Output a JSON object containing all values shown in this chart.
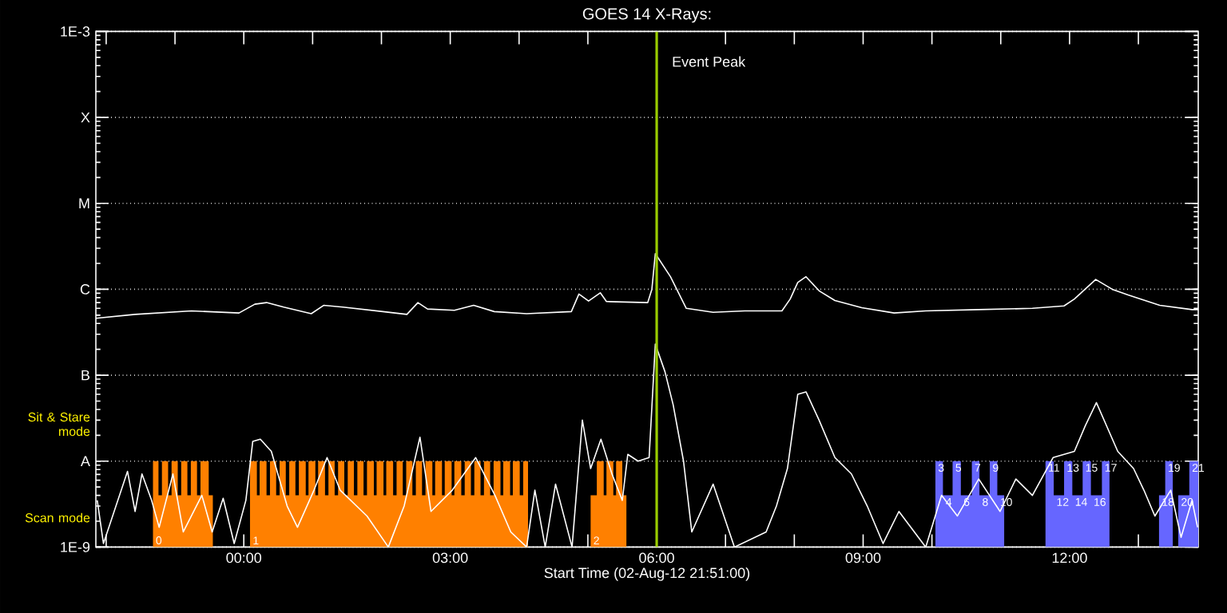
{
  "chart_data": {
    "type": "line",
    "title": "GOES 14 X-Rays:",
    "xlabel": "Start Time (02-Aug-12 21:51:00)",
    "log": true,
    "grid": "y",
    "xlim": [
      -2.15,
      13.87
    ],
    "ylim": [
      1e-09,
      0.001
    ],
    "xticks": [
      {
        "value": -2,
        "label": null
      },
      {
        "value": -1,
        "label": null
      },
      {
        "value": 0,
        "label": "00:00"
      },
      {
        "value": 1,
        "label": null
      },
      {
        "value": 2,
        "label": null
      },
      {
        "value": 3,
        "label": "03:00"
      },
      {
        "value": 4,
        "label": null
      },
      {
        "value": 5,
        "label": null
      },
      {
        "value": 6,
        "label": "06:00"
      },
      {
        "value": 7,
        "label": null
      },
      {
        "value": 8,
        "label": null
      },
      {
        "value": 9,
        "label": "09:00"
      },
      {
        "value": 10,
        "label": null
      },
      {
        "value": 11,
        "label": null
      },
      {
        "value": 12,
        "label": "12:00"
      },
      {
        "value": 13,
        "label": null
      }
    ],
    "yticks": [
      {
        "value": 1e-09,
        "label": "1E-9"
      },
      {
        "value": 2.2e-09,
        "label": "Scan mode"
      },
      {
        "value": 1e-08,
        "label": "A"
      },
      {
        "value": 2.7e-08,
        "label": "Sit & Stare mode"
      },
      {
        "value": 1e-07,
        "label": "B"
      },
      {
        "value": 1e-06,
        "label": "C"
      },
      {
        "value": 1e-05,
        "label": "M"
      },
      {
        "value": 0.0001,
        "label": "X"
      },
      {
        "value": 0.001,
        "label": "1E-3"
      }
    ],
    "series": [
      {
        "type": "area",
        "color": "#ff8000",
        "x": [
          -1.32,
          -1.32,
          -1.24,
          -1.24,
          -1.19,
          -1.19,
          -1.1,
          -1.1,
          -1.05,
          -1.05,
          -0.96,
          -0.96,
          -0.91,
          -0.91,
          -0.82,
          -0.82,
          -0.77,
          -0.77,
          -0.68,
          -0.68,
          -0.63,
          -0.63,
          -0.51,
          -0.51,
          -0.45,
          -0.45
        ],
        "values": [
          1e-09,
          1e-08,
          1e-08,
          4e-09,
          4e-09,
          1e-08,
          1e-08,
          4e-09,
          4e-09,
          1e-08,
          1e-08,
          4e-09,
          4e-09,
          1e-08,
          1e-08,
          4e-09,
          4e-09,
          1e-08,
          1e-08,
          4e-09,
          4e-09,
          1e-08,
          1e-08,
          4e-09,
          4e-09,
          1e-09
        ]
      },
      {
        "type": "area",
        "color": "#ff8000",
        "x": [
          0.09,
          0.09,
          0.19,
          0.19,
          0.23,
          0.23,
          0.33,
          0.33,
          0.38,
          0.38,
          0.47,
          0.47,
          0.52,
          0.52,
          0.61,
          0.61,
          0.66,
          0.66,
          0.75,
          0.75,
          0.8,
          0.8,
          0.9,
          0.9,
          0.94,
          0.94,
          1.04,
          1.04,
          1.08,
          1.08,
          1.18,
          1.18,
          1.23,
          1.23,
          1.32,
          1.32,
          1.37,
          1.37,
          1.46,
          1.46,
          1.51,
          1.51,
          1.6,
          1.6,
          1.65,
          1.65,
          1.74,
          1.74,
          1.79,
          1.79,
          1.89,
          1.89,
          1.93,
          1.93,
          2.03,
          2.03,
          2.07,
          2.07,
          2.17,
          2.17,
          2.22,
          2.22,
          2.31,
          2.31,
          2.36,
          2.36,
          2.45,
          2.45,
          2.5,
          2.5,
          2.59,
          2.59,
          2.64,
          2.64,
          2.74,
          2.74,
          2.78,
          2.78,
          2.88,
          2.88,
          2.92,
          2.92,
          3.02,
          3.02,
          3.06,
          3.06,
          3.16,
          3.16,
          3.21,
          3.21,
          3.3,
          3.3,
          3.35,
          3.35,
          3.44,
          3.44,
          3.49,
          3.49,
          3.58,
          3.58,
          3.63,
          3.63,
          3.73,
          3.73,
          3.77,
          3.77,
          3.87,
          3.87,
          3.91,
          3.91,
          4.01,
          4.01,
          4.06,
          4.06,
          4.13,
          4.13
        ],
        "values": [
          1e-09,
          1e-08,
          1e-08,
          4e-09,
          4e-09,
          1e-08,
          1e-08,
          4e-09,
          4e-09,
          1e-08,
          1e-08,
          4e-09,
          4e-09,
          1e-08,
          1e-08,
          4e-09,
          4e-09,
          1e-08,
          1e-08,
          4e-09,
          4e-09,
          1e-08,
          1e-08,
          4e-09,
          4e-09,
          1e-08,
          1e-08,
          4e-09,
          4e-09,
          1e-08,
          1e-08,
          4e-09,
          4e-09,
          1e-08,
          1e-08,
          4e-09,
          4e-09,
          1e-08,
          1e-08,
          4e-09,
          4e-09,
          1e-08,
          1e-08,
          4e-09,
          4e-09,
          1e-08,
          1e-08,
          4e-09,
          4e-09,
          1e-08,
          1e-08,
          4e-09,
          4e-09,
          1e-08,
          1e-08,
          4e-09,
          4e-09,
          1e-08,
          1e-08,
          4e-09,
          4e-09,
          1e-08,
          1e-08,
          4e-09,
          4e-09,
          1e-08,
          1e-08,
          4e-09,
          4e-09,
          1e-08,
          1e-08,
          4e-09,
          4e-09,
          1e-08,
          1e-08,
          4e-09,
          4e-09,
          1e-08,
          1e-08,
          4e-09,
          4e-09,
          1e-08,
          1e-08,
          4e-09,
          4e-09,
          1e-08,
          1e-08,
          4e-09,
          4e-09,
          1e-08,
          1e-08,
          4e-09,
          4e-09,
          1e-08,
          1e-08,
          4e-09,
          4e-09,
          1e-08,
          1e-08,
          4e-09,
          4e-09,
          1e-08,
          1e-08,
          4e-09,
          4e-09,
          1e-08,
          1e-08,
          4e-09,
          4e-09,
          1e-08,
          1e-08,
          4e-09,
          4e-09,
          1e-08,
          1e-08,
          1e-09
        ]
      },
      {
        "type": "area",
        "color": "#ff8000",
        "x": [
          5.04,
          5.04,
          5.13,
          5.13,
          5.23,
          5.23,
          5.27,
          5.27,
          5.37,
          5.37,
          5.41,
          5.41,
          5.5,
          5.5,
          5.56,
          5.56
        ],
        "values": [
          1e-09,
          4e-09,
          4e-09,
          1e-08,
          1e-08,
          4e-09,
          4e-09,
          1e-08,
          1e-08,
          4e-09,
          4e-09,
          1e-08,
          1e-08,
          4e-09,
          4e-09,
          1e-09
        ]
      },
      {
        "type": "area",
        "color": "#6666ff",
        "x": [
          10.05,
          10.05,
          10.16,
          10.16,
          10.3,
          10.3,
          10.42,
          10.42,
          10.58,
          10.58,
          10.69,
          10.69,
          10.84,
          10.84,
          10.95,
          10.95,
          11.05,
          11.05
        ],
        "values": [
          1e-09,
          1e-08,
          1e-08,
          4e-09,
          4e-09,
          1e-08,
          1e-08,
          4e-09,
          4e-09,
          1e-08,
          1e-08,
          4e-09,
          4e-09,
          1e-08,
          1e-08,
          4e-09,
          4e-09,
          1e-09
        ]
      },
      {
        "type": "area",
        "color": "#6666ff",
        "x": [
          11.65,
          11.65,
          11.77,
          11.77,
          11.92,
          11.92,
          12.04,
          12.04,
          12.19,
          12.19,
          12.31,
          12.31,
          12.47,
          12.47,
          12.58,
          12.58
        ],
        "values": [
          1e-09,
          1e-08,
          1e-08,
          4e-09,
          4e-09,
          1e-08,
          1e-08,
          4e-09,
          4e-09,
          1e-08,
          1e-08,
          4e-09,
          4e-09,
          1e-08,
          1e-08,
          1e-09
        ]
      },
      {
        "type": "area",
        "color": "#6666ff",
        "x": [
          13.3,
          13.3,
          13.39,
          13.39,
          13.5,
          13.5
        ],
        "values": [
          1e-09,
          4e-09,
          4e-09,
          1e-08,
          1e-08,
          1e-09
        ]
      },
      {
        "type": "area",
        "color": "#6666ff",
        "x": [
          13.58,
          13.58,
          13.74,
          13.74,
          13.87,
          13.87
        ],
        "values": [
          1e-09,
          4e-09,
          4e-09,
          1e-08,
          1e-08,
          1e-09
        ]
      },
      {
        "color": "#ffffff",
        "x": [
          -2.15,
          -1.58,
          -0.76,
          -0.07,
          0.16,
          0.33,
          0.58,
          0.98,
          1.16,
          1.44,
          2.02,
          2.37,
          2.53,
          2.67,
          3.06,
          3.34,
          3.64,
          4.11,
          4.76,
          4.87,
          5.01,
          5.18,
          5.27,
          5.87,
          5.93,
          5.98,
          6.2,
          6.43,
          6.82,
          7.28,
          7.82,
          7.94,
          8.05,
          8.17,
          8.36,
          8.59,
          8.98,
          9.45,
          9.91,
          10.68,
          11.46,
          11.92,
          12.07,
          12.38,
          12.62,
          12.85,
          13.31,
          13.78,
          13.87
        ],
        "values": [
          4.6e-07,
          5.1e-07,
          5.6e-07,
          5.3e-07,
          6.7e-07,
          7e-07,
          6.2e-07,
          5.2e-07,
          6.5e-07,
          6.2e-07,
          5.5e-07,
          5.1e-07,
          7e-07,
          5.9e-07,
          5.7e-07,
          6.5e-07,
          5.5e-07,
          5.2e-07,
          5.5e-07,
          8.8e-07,
          7.3e-07,
          9.1e-07,
          7.2e-07,
          7e-07,
          1e-06,
          2.6e-06,
          1.4e-06,
          6e-07,
          5.4e-07,
          5.6e-07,
          5.6e-07,
          7.7e-07,
          1.2e-06,
          1.4e-06,
          9.6e-07,
          7.4e-07,
          6.1e-07,
          5.3e-07,
          5.6e-07,
          5.8e-07,
          6e-07,
          6.4e-07,
          7.7e-07,
          1.3e-06,
          1e-06,
          8.6e-07,
          6.5e-07,
          5.8e-07,
          5.8e-07
        ]
      },
      {
        "color": "#ffffff",
        "x": [
          -2.13,
          -2.04,
          -1.69,
          -1.58,
          -1.48,
          -1.34,
          -1.23,
          -1.03,
          -0.88,
          -0.61,
          -0.46,
          -0.3,
          -0.14,
          0.03,
          0.13,
          0.24,
          0.4,
          0.63,
          0.78,
          1.02,
          1.21,
          1.4,
          1.79,
          2.1,
          2.33,
          2.56,
          2.72,
          3.03,
          3.37,
          3.65,
          3.88,
          4.11,
          4.23,
          4.38,
          4.53,
          4.77,
          4.92,
          5.04,
          5.19,
          5.35,
          5.5,
          5.58,
          5.73,
          5.89,
          5.98,
          6.12,
          6.24,
          6.39,
          6.51,
          6.82,
          7.13,
          7.59,
          7.74,
          7.9,
          8.05,
          8.17,
          8.36,
          8.59,
          8.83,
          9.06,
          9.29,
          9.52,
          9.91,
          10.14,
          10.37,
          10.68,
          10.99,
          11.22,
          11.46,
          11.76,
          12.07,
          12.23,
          12.39,
          12.7,
          12.93,
          13.08,
          13.24,
          13.47,
          13.62,
          13.78,
          13.86
        ],
        "values": [
          3.5e-09,
          1.1e-09,
          7.6e-09,
          2.6e-09,
          7.1e-09,
          3.5e-09,
          1.7e-09,
          7.1e-09,
          1.5e-09,
          4e-09,
          1.5e-09,
          3.7e-09,
          1.1e-09,
          3.5e-09,
          1.7e-08,
          1.8e-08,
          1.3e-08,
          3e-09,
          1.7e-09,
          4.6e-09,
          1.1e-08,
          4.6e-09,
          2.3e-09,
          1e-09,
          3e-09,
          1.9e-08,
          2.6e-09,
          4.6e-09,
          1.1e-08,
          4e-09,
          1.5e-09,
          1e-09,
          4.6e-09,
          1e-09,
          5.4e-09,
          1e-09,
          3e-08,
          8.2e-09,
          1.8e-08,
          7.1e-09,
          3.5e-09,
          1.2e-08,
          1e-08,
          1.1e-08,
          2.3e-07,
          1.1e-07,
          4.5e-08,
          1e-08,
          1.5e-09,
          5.4e-09,
          1e-09,
          1.5e-09,
          3e-09,
          8.2e-09,
          6e-08,
          6.4e-08,
          3e-08,
          1.1e-08,
          7.1e-09,
          3e-09,
          1.1e-09,
          2.6e-09,
          1e-09,
          4e-09,
          2.3e-09,
          6.2e-09,
          2.6e-09,
          6.2e-09,
          4e-09,
          1.1e-08,
          1.3e-08,
          2.6e-08,
          4.8e-08,
          1.3e-08,
          8.2e-09,
          4.6e-09,
          2.3e-09,
          4.6e-09,
          1.3e-09,
          3.5e-09,
          1.7e-09
        ]
      }
    ],
    "ref_lines": [
      {
        "axis": "x",
        "value": 6.0,
        "label": "Event Peak",
        "color": "#99cc00"
      }
    ],
    "annotations": [
      {
        "text": "0",
        "x": -1.32,
        "y": 1e-09
      },
      {
        "text": "1",
        "x": 0.09,
        "y": 1e-09
      },
      {
        "text": "2",
        "x": 5.04,
        "y": 1e-09
      },
      {
        "text": "3",
        "x": 10.05,
        "y": 1e-08
      },
      {
        "text": "4",
        "x": 10.16,
        "y": 4e-09
      },
      {
        "text": "5",
        "x": 10.3,
        "y": 1e-08
      },
      {
        "text": "6",
        "x": 10.42,
        "y": 4e-09
      },
      {
        "text": "7",
        "x": 10.58,
        "y": 1e-08
      },
      {
        "text": "8",
        "x": 10.69,
        "y": 4e-09
      },
      {
        "text": "9",
        "x": 10.84,
        "y": 1e-08
      },
      {
        "text": "10",
        "x": 10.95,
        "y": 4e-09
      },
      {
        "text": "11",
        "x": 11.65,
        "y": 1e-08
      },
      {
        "text": "12",
        "x": 11.77,
        "y": 4e-09
      },
      {
        "text": "13",
        "x": 11.92,
        "y": 1e-08
      },
      {
        "text": "14",
        "x": 12.04,
        "y": 4e-09
      },
      {
        "text": "15",
        "x": 12.19,
        "y": 1e-08
      },
      {
        "text": "16",
        "x": 12.31,
        "y": 4e-09
      },
      {
        "text": "17",
        "x": 12.47,
        "y": 1e-08
      },
      {
        "text": "18",
        "x": 13.3,
        "y": 4e-09
      },
      {
        "text": "19",
        "x": 13.39,
        "y": 1e-08
      },
      {
        "text": "20",
        "x": 13.58,
        "y": 4e-09
      },
      {
        "text": "21",
        "x": 13.74,
        "y": 1e-08
      }
    ]
  }
}
